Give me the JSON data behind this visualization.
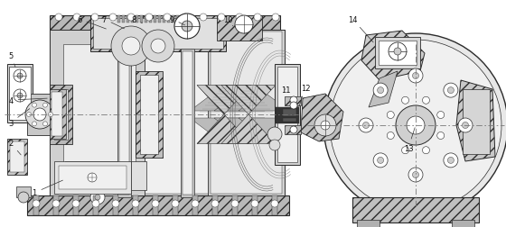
{
  "figsize": [
    5.6,
    2.53
  ],
  "dpi": 100,
  "lc": "#2a2a2a",
  "fc_hatch": "#c8c8c8",
  "fc_light": "#e8e8e8",
  "fc_white": "#ffffff",
  "fc_dark": "#888888",
  "centerline_color": "#555555",
  "label_fontsize": 6.5,
  "labels": {
    "1": [
      26,
      205,
      95,
      225
    ],
    "2": [
      12,
      160,
      58,
      195
    ],
    "3": [
      12,
      137,
      55,
      155
    ],
    "4": [
      12,
      112,
      55,
      130
    ],
    "5": [
      12,
      28,
      55,
      55
    ],
    "6": [
      85,
      18,
      110,
      38
    ],
    "7": [
      110,
      18,
      135,
      38
    ],
    "8": [
      140,
      18,
      168,
      38
    ],
    "9": [
      185,
      18,
      210,
      38
    ],
    "10": [
      248,
      18,
      278,
      38
    ],
    "11": [
      313,
      95,
      340,
      120
    ],
    "12": [
      335,
      95,
      360,
      118
    ],
    "13": [
      450,
      155,
      478,
      178
    ],
    "14": [
      388,
      18,
      415,
      40
    ]
  }
}
